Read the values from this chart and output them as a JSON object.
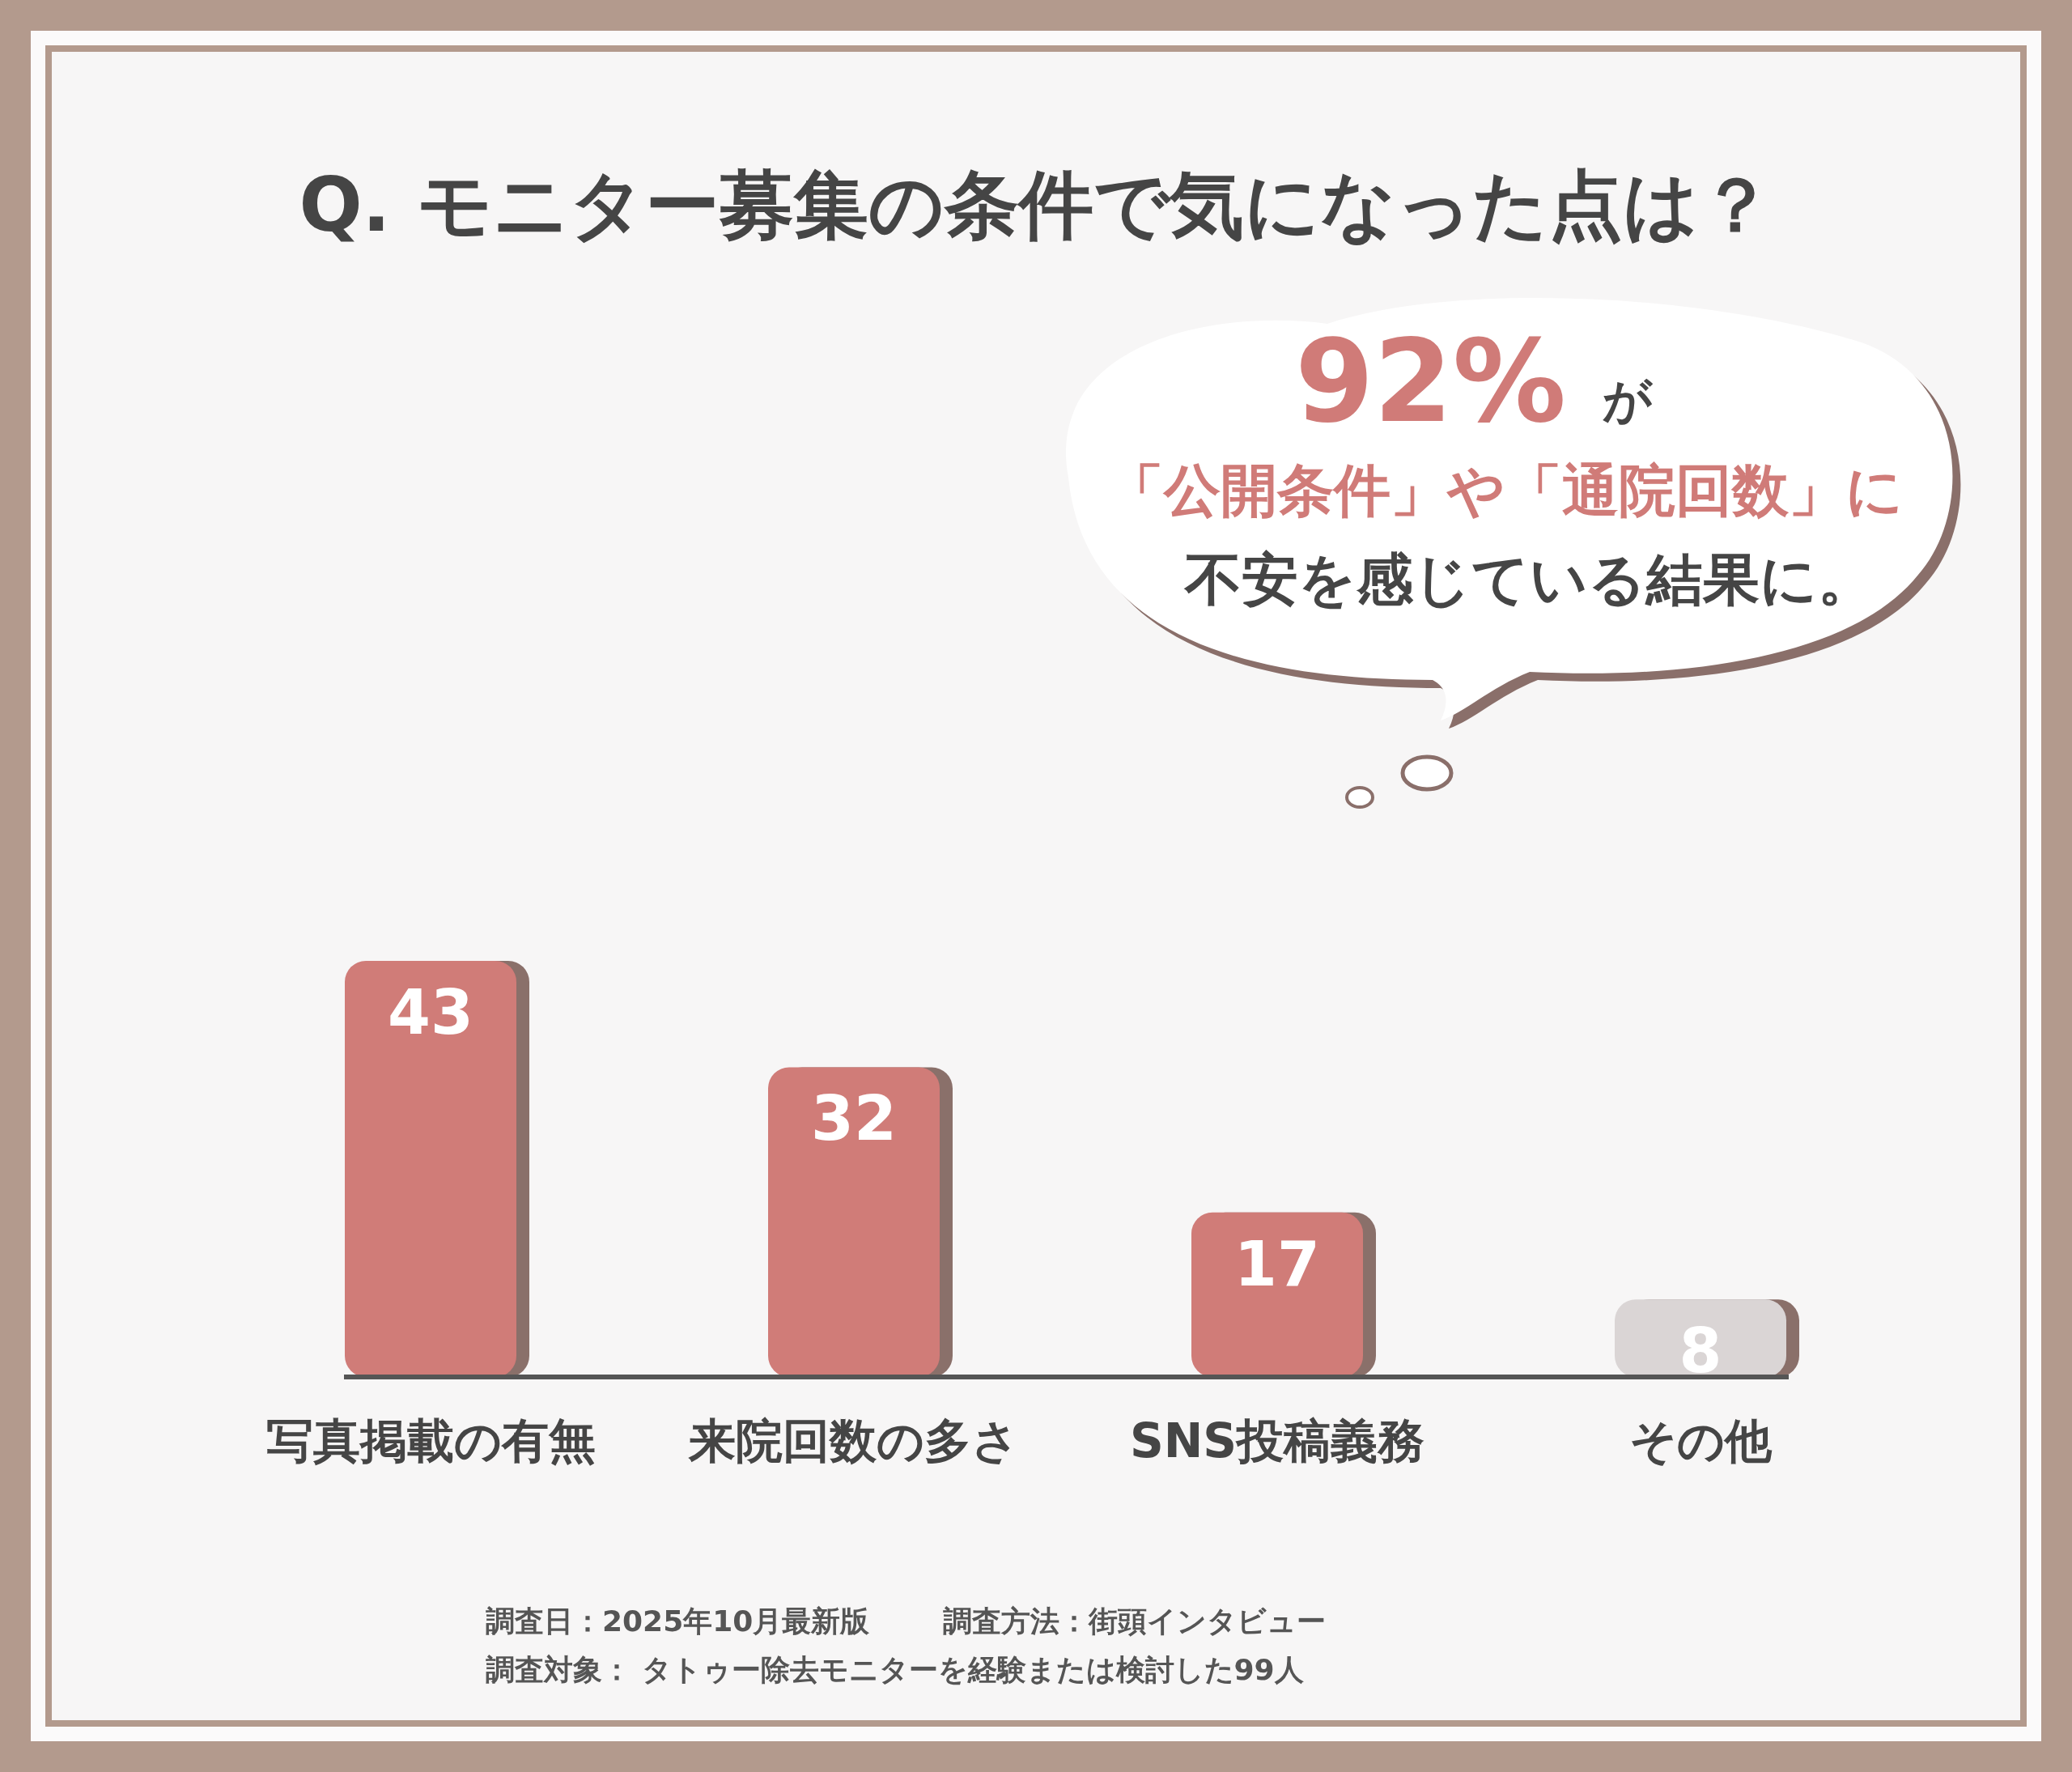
{
  "chart_data": {
    "type": "bar",
    "title": "Q. モニター募集の条件で気になった点は？",
    "categories": [
      "写真掲載の有無",
      "来院回数の多さ",
      "SNS投稿義務",
      "その他"
    ],
    "values": [
      43,
      32,
      17,
      8
    ],
    "colors": [
      "#d07b78",
      "#d07b78",
      "#d07b78",
      "#dad5d5"
    ],
    "data_labels": true,
    "annotations": [
      "92%",
      "が",
      "「公開条件」や「通院回数」に",
      "不安を感じている結果に。",
      "調査日：2025年10月最新版",
      "調査方法：街頭インタビュー",
      "調査対象： タトゥー除去モニターを経験または検討した99人"
    ]
  }
}
